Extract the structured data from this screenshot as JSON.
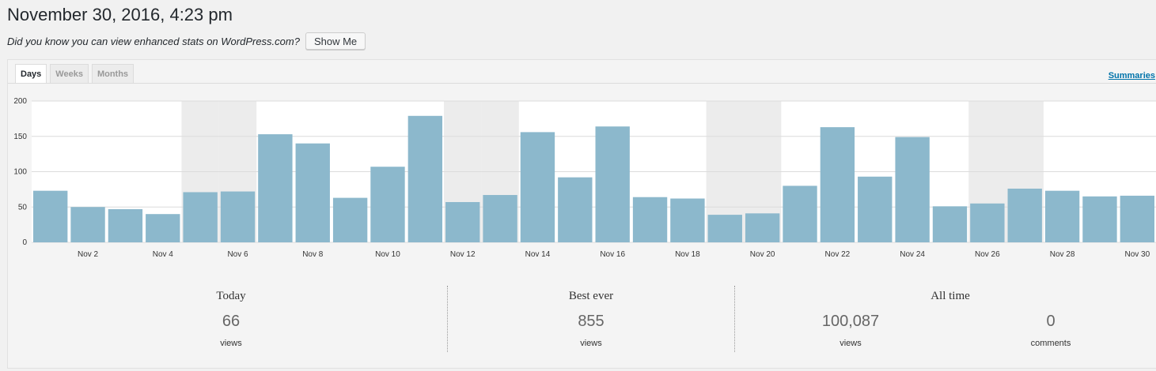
{
  "page": {
    "title": "November 30, 2016, 4:23 pm",
    "promo_text": "Did you know you can view enhanced stats on WordPress.com?",
    "promo_button": "Show Me"
  },
  "tabs": [
    {
      "label": "Days",
      "active": true
    },
    {
      "label": "Weeks",
      "active": false
    },
    {
      "label": "Months",
      "active": false
    }
  ],
  "summaries_link": "Summaries",
  "colors": {
    "bar": "#8cb8cc",
    "weekend_band": "#ececec",
    "grid": "#dcdcdc",
    "link": "#0073aa"
  },
  "chart_data": {
    "type": "bar",
    "categories": [
      "Nov 1",
      "Nov 2",
      "Nov 3",
      "Nov 4",
      "Nov 5",
      "Nov 6",
      "Nov 7",
      "Nov 8",
      "Nov 9",
      "Nov 10",
      "Nov 11",
      "Nov 12",
      "Nov 13",
      "Nov 14",
      "Nov 15",
      "Nov 16",
      "Nov 17",
      "Nov 18",
      "Nov 19",
      "Nov 20",
      "Nov 21",
      "Nov 22",
      "Nov 23",
      "Nov 24",
      "Nov 25",
      "Nov 26",
      "Nov 27",
      "Nov 28",
      "Nov 29",
      "Nov 30"
    ],
    "tick_labels": [
      "Nov 2",
      "Nov 4",
      "Nov 6",
      "Nov 8",
      "Nov 10",
      "Nov 12",
      "Nov 14",
      "Nov 16",
      "Nov 18",
      "Nov 20",
      "Nov 22",
      "Nov 24",
      "Nov 26",
      "Nov 28",
      "Nov 30"
    ],
    "values": [
      73,
      50,
      47,
      40,
      71,
      72,
      153,
      140,
      63,
      107,
      179,
      57,
      67,
      156,
      92,
      164,
      64,
      62,
      39,
      41,
      80,
      163,
      93,
      149,
      51,
      55,
      76,
      73,
      65,
      66
    ],
    "weekend_days": [
      "Nov 5",
      "Nov 6",
      "Nov 12",
      "Nov 13",
      "Nov 19",
      "Nov 20",
      "Nov 26",
      "Nov 27"
    ],
    "yticks": [
      0,
      50,
      100,
      150,
      200
    ],
    "ylim": [
      0,
      200
    ],
    "grid": true,
    "title": "",
    "xlabel": "",
    "ylabel": ""
  },
  "stats": {
    "today": {
      "heading": "Today",
      "value": "66",
      "unit": "views"
    },
    "best": {
      "heading": "Best ever",
      "value": "855",
      "unit": "views"
    },
    "alltime": {
      "heading": "All time",
      "views_value": "100,087",
      "views_unit": "views",
      "comments_value": "0",
      "comments_unit": "comments"
    }
  }
}
